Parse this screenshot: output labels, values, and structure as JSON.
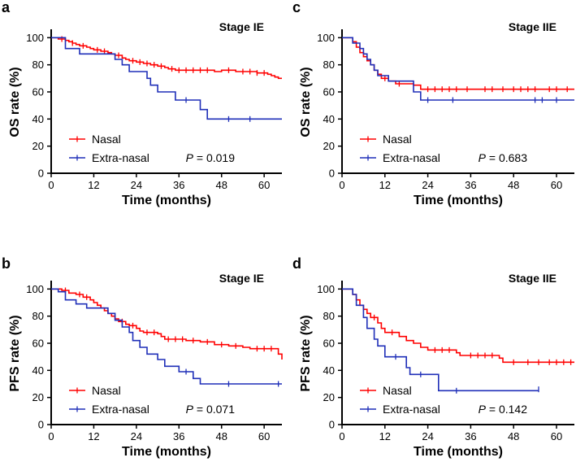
{
  "colors": {
    "nasal": "#ff0000",
    "extranasal": "#1f2fb8"
  },
  "chart_data": [
    {
      "type": "line",
      "panel": "a",
      "title": "Stage IE",
      "xlabel": "Time (months)",
      "ylabel": "OS rate (%)",
      "xlim": [
        0,
        65
      ],
      "ylim": [
        0,
        105
      ],
      "xticks": [
        "0",
        "12",
        "24",
        "36",
        "48",
        "60"
      ],
      "yticks": [
        "0",
        "20",
        "40",
        "60",
        "80",
        "100"
      ],
      "p_label": "P",
      "p_value": " = 0.019",
      "series": [
        {
          "name": "Nasal",
          "color": "#ff0000",
          "steps": [
            [
              0,
              100
            ],
            [
              2,
              99
            ],
            [
              4,
              98
            ],
            [
              5,
              97
            ],
            [
              6,
              96
            ],
            [
              7,
              95
            ],
            [
              8,
              94
            ],
            [
              10,
              93
            ],
            [
              11,
              92
            ],
            [
              12,
              91
            ],
            [
              14,
              90
            ],
            [
              16,
              89
            ],
            [
              17,
              88
            ],
            [
              18,
              87
            ],
            [
              20,
              85
            ],
            [
              21,
              84
            ],
            [
              22,
              83
            ],
            [
              24,
              82
            ],
            [
              26,
              81
            ],
            [
              28,
              80
            ],
            [
              30,
              79
            ],
            [
              32,
              78
            ],
            [
              33,
              77
            ],
            [
              35,
              76
            ],
            [
              46,
              75
            ],
            [
              48,
              76
            ],
            [
              52,
              75
            ],
            [
              58,
              74
            ],
            [
              61,
              73
            ],
            [
              62,
              72
            ],
            [
              63,
              71
            ],
            [
              64,
              70
            ],
            [
              65,
              70
            ]
          ],
          "censor": [
            [
              3,
              99
            ],
            [
              6,
              96
            ],
            [
              9,
              94
            ],
            [
              13,
              91
            ],
            [
              15,
              90
            ],
            [
              19,
              87
            ],
            [
              23,
              83
            ],
            [
              25,
              82
            ],
            [
              27,
              81
            ],
            [
              29,
              80
            ],
            [
              31,
              79
            ],
            [
              34,
              77
            ],
            [
              36,
              76
            ],
            [
              38,
              76
            ],
            [
              40,
              76
            ],
            [
              42,
              76
            ],
            [
              44,
              76
            ],
            [
              50,
              76
            ],
            [
              54,
              75
            ],
            [
              56,
              75
            ],
            [
              58,
              74
            ],
            [
              60,
              74
            ]
          ]
        },
        {
          "name": "Extra-nasal",
          "color": "#1f2fb8",
          "steps": [
            [
              0,
              100
            ],
            [
              4,
              92
            ],
            [
              8,
              88
            ],
            [
              18,
              84
            ],
            [
              20,
              80
            ],
            [
              22,
              75
            ],
            [
              27,
              70
            ],
            [
              28,
              65
            ],
            [
              30,
              60
            ],
            [
              35,
              54
            ],
            [
              42,
              47
            ],
            [
              44,
              40
            ],
            [
              65,
              40
            ]
          ],
          "censor": [
            [
              38,
              54
            ],
            [
              50,
              40
            ],
            [
              56,
              40
            ]
          ]
        }
      ]
    },
    {
      "type": "line",
      "panel": "c",
      "title": "Stage IIE",
      "xlabel": "Time (months)",
      "ylabel": "OS rate (%)",
      "xlim": [
        0,
        65
      ],
      "ylim": [
        0,
        105
      ],
      "xticks": [
        "0",
        "12",
        "24",
        "36",
        "48",
        "60"
      ],
      "yticks": [
        "0",
        "20",
        "40",
        "60",
        "80",
        "100"
      ],
      "p_label": "P",
      "p_value": " = 0.683",
      "series": [
        {
          "name": "Nasal",
          "color": "#ff0000",
          "steps": [
            [
              0,
              100
            ],
            [
              3,
              97
            ],
            [
              4,
              93
            ],
            [
              5,
              89
            ],
            [
              6,
              86
            ],
            [
              7,
              83
            ],
            [
              8,
              80
            ],
            [
              9,
              76
            ],
            [
              10,
              73
            ],
            [
              11,
              70
            ],
            [
              13,
              68
            ],
            [
              15,
              66
            ],
            [
              20,
              65
            ],
            [
              22,
              62
            ],
            [
              65,
              62
            ]
          ],
          "censor": [
            [
              12,
              70
            ],
            [
              16,
              66
            ],
            [
              24,
              62
            ],
            [
              26,
              62
            ],
            [
              28,
              62
            ],
            [
              30,
              62
            ],
            [
              32,
              62
            ],
            [
              35,
              62
            ],
            [
              40,
              62
            ],
            [
              42,
              62
            ],
            [
              45,
              62
            ],
            [
              48,
              62
            ],
            [
              50,
              62
            ],
            [
              52,
              62
            ],
            [
              54,
              62
            ],
            [
              58,
              62
            ],
            [
              60,
              62
            ],
            [
              63,
              62
            ]
          ]
        },
        {
          "name": "Extra-nasal",
          "color": "#1f2fb8",
          "steps": [
            [
              0,
              100
            ],
            [
              3,
              96
            ],
            [
              5,
              92
            ],
            [
              6,
              88
            ],
            [
              7,
              84
            ],
            [
              8,
              80
            ],
            [
              9,
              76
            ],
            [
              10,
              72
            ],
            [
              13,
              68
            ],
            [
              18,
              68
            ],
            [
              20,
              60
            ],
            [
              22,
              54
            ],
            [
              65,
              54
            ]
          ],
          "censor": [
            [
              24,
              54
            ],
            [
              31,
              54
            ],
            [
              54,
              54
            ],
            [
              56,
              54
            ],
            [
              60,
              54
            ]
          ]
        }
      ]
    },
    {
      "type": "line",
      "panel": "b",
      "title": "Stage IE",
      "xlabel": "Time (months)",
      "ylabel": "PFS rate (%)",
      "xlim": [
        0,
        65
      ],
      "ylim": [
        0,
        105
      ],
      "xticks": [
        "0",
        "12",
        "24",
        "36",
        "48",
        "60"
      ],
      "yticks": [
        "0",
        "20",
        "40",
        "60",
        "80",
        "100"
      ],
      "p_label": "P",
      "p_value": " = 0.071",
      "series": [
        {
          "name": "Nasal",
          "color": "#ff0000",
          "steps": [
            [
              0,
              100
            ],
            [
              3,
              99
            ],
            [
              5,
              97
            ],
            [
              7,
              96
            ],
            [
              9,
              94
            ],
            [
              11,
              92
            ],
            [
              12,
              90
            ],
            [
              13,
              88
            ],
            [
              14,
              86
            ],
            [
              15,
              84
            ],
            [
              16,
              82
            ],
            [
              17,
              80
            ],
            [
              18,
              78
            ],
            [
              19,
              76
            ],
            [
              21,
              74
            ],
            [
              22,
              73
            ],
            [
              24,
              71
            ],
            [
              25,
              69
            ],
            [
              26,
              68
            ],
            [
              30,
              67
            ],
            [
              31,
              65
            ],
            [
              32,
              63
            ],
            [
              38,
              62
            ],
            [
              42,
              61
            ],
            [
              46,
              59
            ],
            [
              50,
              58
            ],
            [
              54,
              57
            ],
            [
              56,
              56
            ],
            [
              63,
              56
            ],
            [
              64,
              52
            ],
            [
              65,
              48
            ]
          ],
          "censor": [
            [
              4,
              99
            ],
            [
              8,
              96
            ],
            [
              10,
              94
            ],
            [
              20,
              76
            ],
            [
              23,
              73
            ],
            [
              27,
              68
            ],
            [
              29,
              68
            ],
            [
              33,
              63
            ],
            [
              35,
              63
            ],
            [
              37,
              63
            ],
            [
              40,
              62
            ],
            [
              44,
              61
            ],
            [
              48,
              59
            ],
            [
              52,
              58
            ],
            [
              58,
              56
            ],
            [
              60,
              56
            ],
            [
              62,
              56
            ]
          ]
        },
        {
          "name": "Extra-nasal",
          "color": "#1f2fb8",
          "steps": [
            [
              0,
              100
            ],
            [
              2,
              98
            ],
            [
              4,
              92
            ],
            [
              7,
              89
            ],
            [
              10,
              86
            ],
            [
              16,
              82
            ],
            [
              18,
              77
            ],
            [
              20,
              72
            ],
            [
              22,
              68
            ],
            [
              23,
              62
            ],
            [
              25,
              57
            ],
            [
              27,
              52
            ],
            [
              30,
              48
            ],
            [
              32,
              43
            ],
            [
              36,
              39
            ],
            [
              40,
              34
            ],
            [
              42,
              30
            ],
            [
              65,
              30
            ]
          ],
          "censor": [
            [
              38,
              39
            ],
            [
              50,
              30
            ],
            [
              64,
              30
            ]
          ]
        }
      ]
    },
    {
      "type": "line",
      "panel": "d",
      "title": "Stage IIE",
      "xlabel": "Time (months)",
      "ylabel": "PFS rate (%)",
      "xlim": [
        0,
        65
      ],
      "ylim": [
        0,
        105
      ],
      "xticks": [
        "0",
        "12",
        "24",
        "36",
        "48",
        "60"
      ],
      "yticks": [
        "0",
        "20",
        "40",
        "60",
        "80",
        "100"
      ],
      "p_label": "P",
      "p_value": " = 0.142",
      "series": [
        {
          "name": "Nasal",
          "color": "#ff0000",
          "steps": [
            [
              0,
              100
            ],
            [
              3,
              96
            ],
            [
              4,
              92
            ],
            [
              5,
              88
            ],
            [
              6,
              85
            ],
            [
              7,
              82
            ],
            [
              8,
              79
            ],
            [
              10,
              75
            ],
            [
              11,
              71
            ],
            [
              12,
              68
            ],
            [
              16,
              65
            ],
            [
              18,
              62
            ],
            [
              20,
              60
            ],
            [
              22,
              57
            ],
            [
              24,
              55
            ],
            [
              32,
              53
            ],
            [
              33,
              51
            ],
            [
              44,
              49
            ],
            [
              45,
              46
            ],
            [
              65,
              46
            ]
          ],
          "censor": [
            [
              9,
              79
            ],
            [
              14,
              68
            ],
            [
              26,
              55
            ],
            [
              28,
              55
            ],
            [
              30,
              55
            ],
            [
              36,
              51
            ],
            [
              38,
              51
            ],
            [
              40,
              51
            ],
            [
              42,
              51
            ],
            [
              48,
              46
            ],
            [
              52,
              46
            ],
            [
              55,
              46
            ],
            [
              58,
              46
            ],
            [
              60,
              46
            ],
            [
              62,
              46
            ],
            [
              64,
              46
            ]
          ]
        },
        {
          "name": "Extra-nasal",
          "color": "#1f2fb8",
          "steps": [
            [
              0,
              100
            ],
            [
              3,
              96
            ],
            [
              4,
              88
            ],
            [
              6,
              79
            ],
            [
              7,
              71
            ],
            [
              9,
              63
            ],
            [
              10,
              58
            ],
            [
              12,
              50
            ],
            [
              18,
              42
            ],
            [
              19,
              37
            ],
            [
              27,
              25
            ],
            [
              55,
              25
            ]
          ],
          "censor": [
            [
              15,
              50
            ],
            [
              22,
              37
            ],
            [
              32,
              25
            ],
            [
              55,
              26
            ]
          ]
        }
      ]
    }
  ]
}
